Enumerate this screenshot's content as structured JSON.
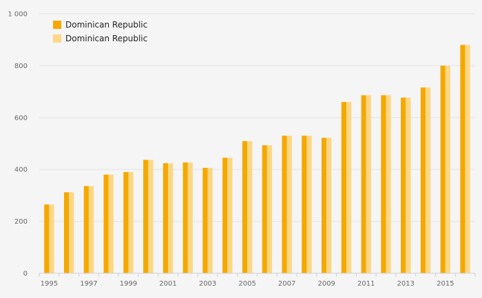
{
  "chart_data": {
    "type": "bar",
    "categories": [
      "1995",
      "1996",
      "1997",
      "1998",
      "1999",
      "2000",
      "2001",
      "2002",
      "2003",
      "2004",
      "2005",
      "2006",
      "2007",
      "2008",
      "2009",
      "2010",
      "2011",
      "2012",
      "2013",
      "2014",
      "2015",
      "2016"
    ],
    "x_tick_labels": [
      "1995",
      "1997",
      "1999",
      "2001",
      "2003",
      "2005",
      "2007",
      "2009",
      "2011",
      "2013",
      "2015"
    ],
    "y_tick_labels": [
      "0",
      "200",
      "400",
      "600",
      "800",
      "1 000"
    ],
    "y_ticks": [
      0,
      200,
      400,
      600,
      800,
      1000
    ],
    "ylim": [
      0,
      1000
    ],
    "title": "",
    "xlabel": "",
    "ylabel": "",
    "grid": true,
    "legend_position": "top-left",
    "series": [
      {
        "name": "Dominican Republic",
        "color": "#f5a800",
        "values": [
          265,
          312,
          336,
          380,
          390,
          437,
          424,
          427,
          406,
          445,
          509,
          493,
          530,
          530,
          522,
          660,
          686,
          686,
          677,
          716,
          800,
          880
        ]
      },
      {
        "name": "Dominican Republic",
        "color": "#fed784",
        "values": [
          265,
          312,
          336,
          380,
          390,
          437,
          424,
          427,
          406,
          445,
          509,
          493,
          530,
          530,
          522,
          660,
          686,
          686,
          677,
          716,
          800,
          880
        ]
      }
    ]
  }
}
